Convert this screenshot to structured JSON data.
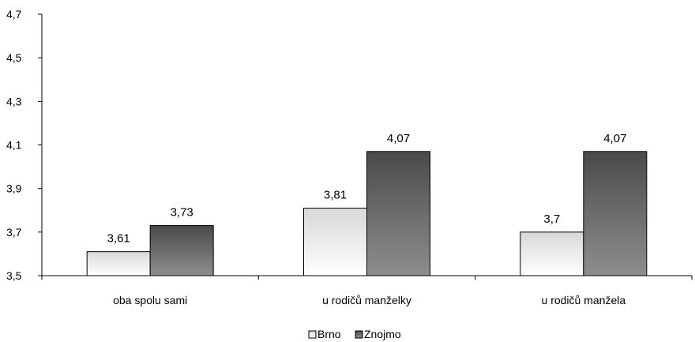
{
  "chart_data": {
    "type": "bar",
    "title": "",
    "xlabel": "",
    "ylabel": "",
    "categories": [
      "oba spolu sami",
      "u rodičů manželky",
      "u rodičů manžela"
    ],
    "series": [
      {
        "name": "Brno",
        "values": [
          3.61,
          3.81,
          3.7
        ],
        "labels": [
          "3,61",
          "3,81",
          "3,7"
        ],
        "style": "light-gradient"
      },
      {
        "name": "Znojmo",
        "values": [
          3.73,
          4.07,
          4.07
        ],
        "labels": [
          "3,73",
          "4,07",
          "4,07"
        ],
        "style": "dark-gradient"
      }
    ],
    "ylim": [
      3.5,
      4.7
    ],
    "yticks": [
      3.5,
      3.7,
      3.9,
      4.1,
      4.3,
      4.5,
      4.7
    ],
    "ytick_labels": [
      "3,5",
      "3,7",
      "3,9",
      "4,1",
      "4,3",
      "4,5",
      "4,7"
    ],
    "grid": false,
    "legend_position": "bottom-center",
    "colors": {
      "brno_top": "#d8d8d8",
      "brno_bottom": "#ffffff",
      "znojmo_top": "#4a4a4a",
      "znojmo_bottom": "#8e8e8e",
      "axis": "#000000"
    }
  }
}
